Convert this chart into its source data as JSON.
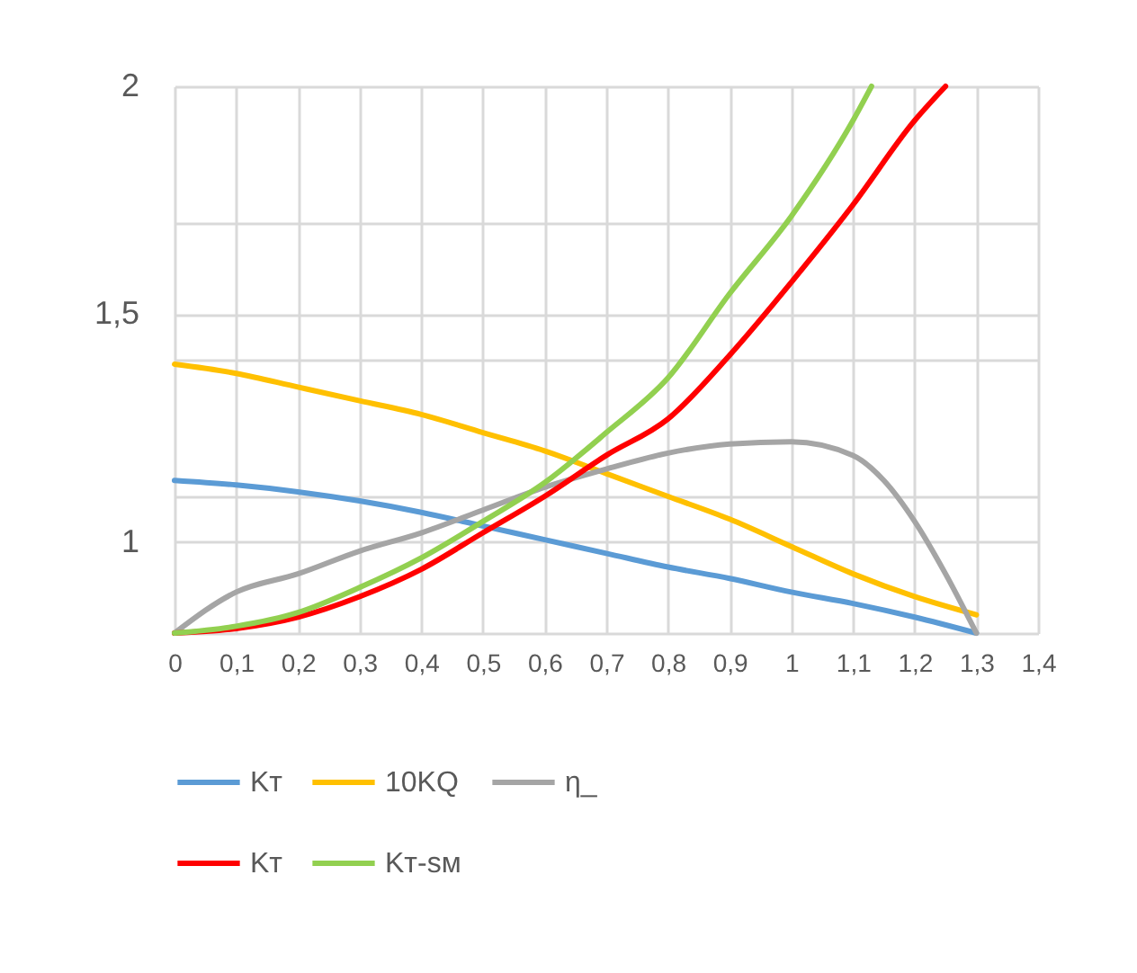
{
  "chart_data": {
    "type": "line",
    "x": [
      0,
      0.1,
      0.2,
      0.3,
      0.4,
      0.5,
      0.6,
      0.7,
      0.8,
      0.9,
      1.0,
      1.1,
      1.2,
      1.3
    ],
    "series": [
      {
        "name": "Kт",
        "color": "#5b9bd5",
        "values": [
          1.135,
          1.125,
          1.11,
          1.09,
          1.065,
          1.035,
          1.005,
          0.975,
          0.945,
          0.92,
          0.89,
          0.865,
          0.835,
          0.8
        ]
      },
      {
        "name": "10KQ",
        "color": "#ffc000",
        "values": [
          1.39,
          1.37,
          1.34,
          1.31,
          1.28,
          1.24,
          1.2,
          1.15,
          1.1,
          1.05,
          0.99,
          0.93,
          0.88,
          0.84
        ]
      },
      {
        "name": "η_",
        "color": "#a5a5a5",
        "x": [
          0,
          0.1,
          0.2,
          0.3,
          0.4,
          0.5,
          0.6,
          0.7,
          0.8,
          0.9,
          1.0,
          1.1,
          1.15,
          1.2,
          1.25,
          1.3
        ],
        "values": [
          0.8,
          0.89,
          0.93,
          0.98,
          1.02,
          1.07,
          1.12,
          1.16,
          1.195,
          1.215,
          1.22,
          1.19,
          1.135,
          1.045,
          0.93,
          0.8
        ]
      },
      {
        "name": "Kт",
        "color": "#ff0000",
        "x": [
          0,
          0.1,
          0.2,
          0.3,
          0.4,
          0.5,
          0.6,
          0.7,
          0.8,
          0.9,
          1.0,
          1.1,
          1.2,
          1.25
        ],
        "values": [
          0.8,
          0.81,
          0.835,
          0.88,
          0.94,
          1.02,
          1.1,
          1.19,
          1.27,
          1.41,
          1.57,
          1.74,
          1.925,
          2.0
        ]
      },
      {
        "name": "Kт-sм",
        "color": "#92d050",
        "x": [
          0,
          0.1,
          0.2,
          0.3,
          0.4,
          0.5,
          0.6,
          0.7,
          0.8,
          0.9,
          1.0,
          1.1,
          1.13
        ],
        "values": [
          0.8,
          0.815,
          0.845,
          0.9,
          0.965,
          1.045,
          1.13,
          1.24,
          1.36,
          1.545,
          1.715,
          1.925,
          2.0
        ]
      }
    ],
    "xlim": [
      0,
      1.4
    ],
    "xticks": [
      0,
      {
        "value": 0.1,
        "label": "0,1"
      },
      {
        "value": 0.2,
        "label": "0,2"
      },
      {
        "value": 0.3,
        "label": "0,3"
      },
      {
        "value": 0.4,
        "label": "0,4"
      },
      {
        "value": 0.5,
        "label": "0,5"
      },
      {
        "value": 0.6,
        "label": "0,6"
      },
      {
        "value": 0.7,
        "label": "0,7"
      },
      {
        "value": 0.8,
        "label": "0,8"
      },
      {
        "value": 0.9,
        "label": "0,9"
      },
      1,
      {
        "value": 1.1,
        "label": "1,1"
      },
      {
        "value": 1.2,
        "label": "1,2"
      },
      {
        "value": 1.3,
        "label": "1,3"
      },
      {
        "value": 1.4,
        "label": "1,4"
      }
    ],
    "ylim": [
      0.8,
      2
    ],
    "yticks": [
      {
        "value": 0.8,
        "label": null
      },
      1,
      {
        "value": 1.1,
        "label": null
      },
      {
        "value": 1.4,
        "label": null
      },
      {
        "value": 1.5,
        "label": "1,5"
      },
      {
        "value": 1.7,
        "label": null
      },
      2
    ],
    "grid": true,
    "legend": "bottom"
  }
}
